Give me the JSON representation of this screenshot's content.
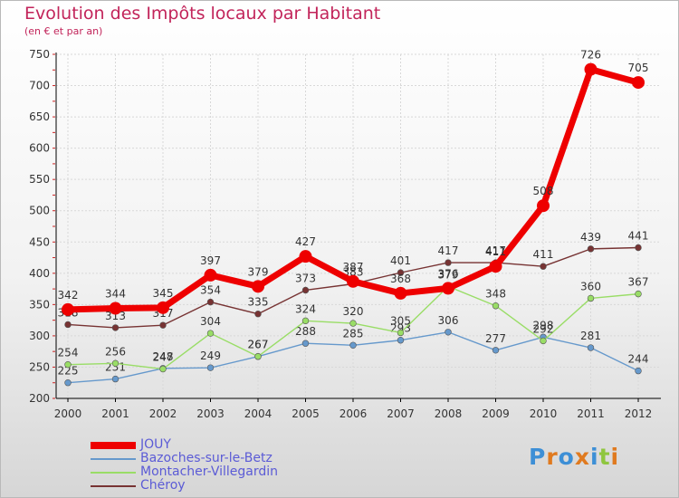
{
  "chart_data": {
    "type": "line",
    "title": "Evolution des Impôts locaux par Habitant",
    "subtitle": "(en € et par an)",
    "categories": [
      "2000",
      "2001",
      "2002",
      "2003",
      "2004",
      "2005",
      "2006",
      "2007",
      "2008",
      "2009",
      "2010",
      "2011",
      "2012"
    ],
    "ylim": [
      200,
      750
    ],
    "yticks": [
      200,
      250,
      300,
      350,
      400,
      450,
      500,
      550,
      600,
      650,
      700,
      750
    ],
    "grid": true,
    "series": [
      {
        "name": "JOUY",
        "color": "#ee0000",
        "values": [
          342,
          344,
          345,
          397,
          379,
          427,
          387,
          368,
          376,
          411,
          508,
          726,
          705
        ]
      },
      {
        "name": "Bazoches-sur-le-Betz",
        "color": "#6699cc",
        "values": [
          225,
          231,
          248,
          249,
          267,
          288,
          285,
          293,
          306,
          277,
          298,
          281,
          244
        ]
      },
      {
        "name": "Montacher-Villegardin",
        "color": "#99dd66",
        "values": [
          254,
          256,
          247,
          304,
          267,
          324,
          320,
          305,
          379,
          348,
          292,
          360,
          367
        ]
      },
      {
        "name": "Chéroy",
        "color": "#773333",
        "values": [
          318,
          313,
          317,
          354,
          335,
          373,
          383,
          401,
          417,
          417,
          411,
          439,
          441
        ]
      }
    ]
  },
  "logo": {
    "text": "Proxiti"
  }
}
